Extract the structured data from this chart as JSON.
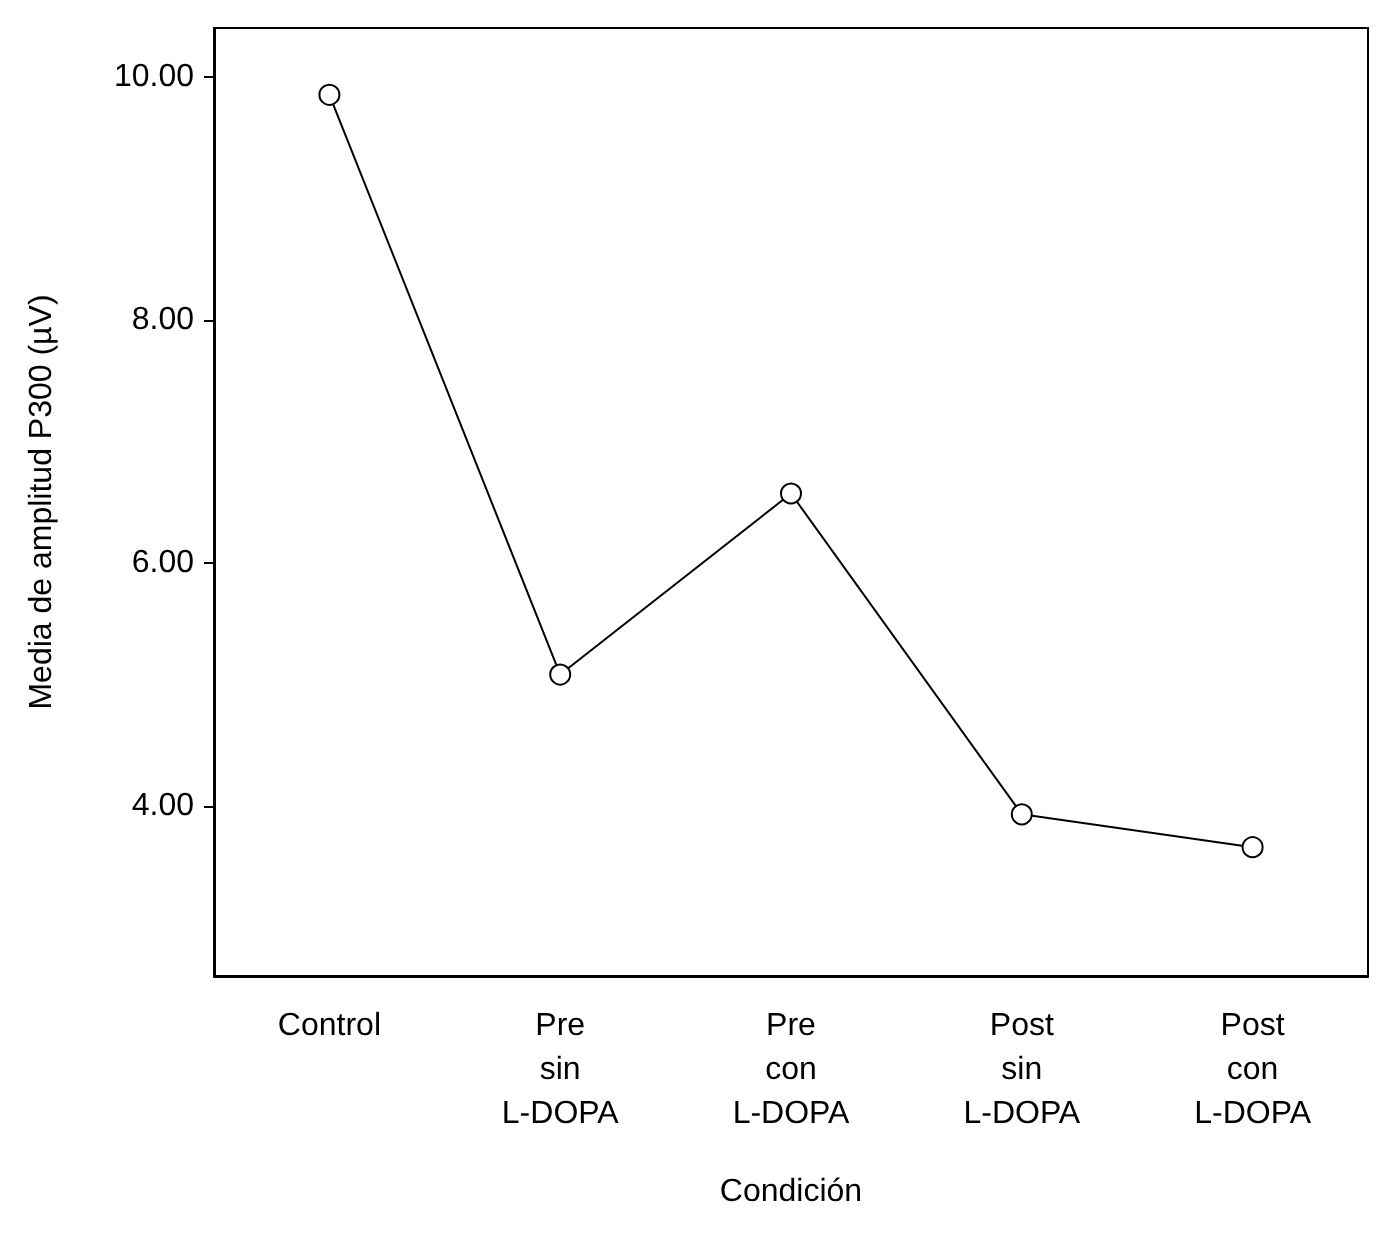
{
  "chart_data": {
    "type": "line",
    "xlabel": "Condición",
    "ylabel": "Media de amplitud P300 (µV)",
    "categories": [
      "Control",
      "Pre\nsin\nL-DOPA",
      "Pre\ncon\nL-DOPA",
      "Post\nsin\nL-DOPA",
      "Post\ncon\nL-DOPA"
    ],
    "series": [
      {
        "color": "#000000",
        "values": [
          9.85,
          5.08,
          6.57,
          3.93,
          3.66
        ]
      }
    ],
    "ylim": [
      2.6,
      10.4
    ],
    "yticks": [
      {
        "value": 4,
        "label": "4.00"
      },
      {
        "value": 6,
        "label": "6.00"
      },
      {
        "value": 8,
        "label": "8.00"
      },
      {
        "value": 10,
        "label": "10.00"
      }
    ],
    "marker": "circle",
    "line_style": "solid"
  }
}
